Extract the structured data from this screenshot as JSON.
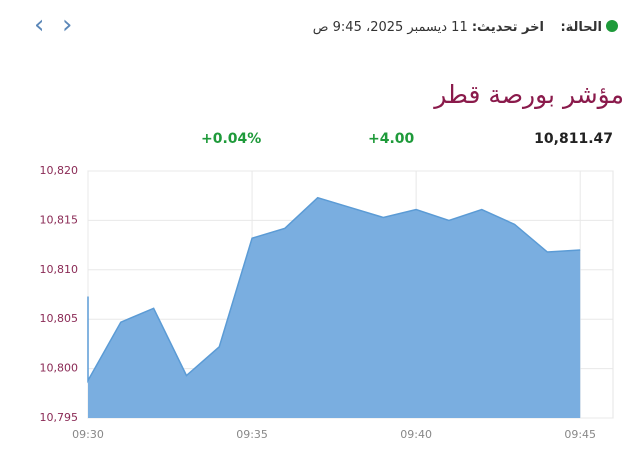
{
  "header": {
    "status_label": "الحالة:",
    "update_label": "اخر تحديث:",
    "update_time": "11 ديسمبر 2025، 9:45 ص"
  },
  "title": "مؤشر بورصة قطر",
  "stats": {
    "last": "10,811.47",
    "change": "+4.00",
    "change_percent": "+0.04%"
  },
  "chart_data": {
    "type": "area",
    "color": "#5b9bd5",
    "fill": "#7aaee0",
    "x": [
      "09:30",
      "09:30",
      "09:31",
      "09:32",
      "09:33",
      "09:34",
      "09:35",
      "09:36",
      "09:37",
      "09:38",
      "09:39",
      "09:40",
      "09:41",
      "09:42",
      "09:43",
      "09:44",
      "09:45"
    ],
    "values": [
      10807.3,
      10798.8,
      10804.7,
      10806.1,
      10799.3,
      10802.2,
      10813.2,
      10814.2,
      10817.3,
      10816.3,
      10815.3,
      10816.1,
      10815.0,
      10816.1,
      10814.6,
      10811.8,
      10812.0
    ],
    "xlim": [
      "09:30",
      "09:46"
    ],
    "xticks": [
      "09:30",
      "09:35",
      "09:40",
      "09:45"
    ],
    "ylim": [
      10795,
      10820
    ],
    "yticks": [
      {
        "value": 10795,
        "label": "10,795"
      },
      {
        "value": 10800,
        "label": "10,800"
      },
      {
        "value": 10805,
        "label": "10,805"
      },
      {
        "value": 10810,
        "label": "10,810"
      },
      {
        "value": 10815,
        "label": "10,815"
      },
      {
        "value": 10820,
        "label": "10,820"
      }
    ],
    "grid": true
  }
}
